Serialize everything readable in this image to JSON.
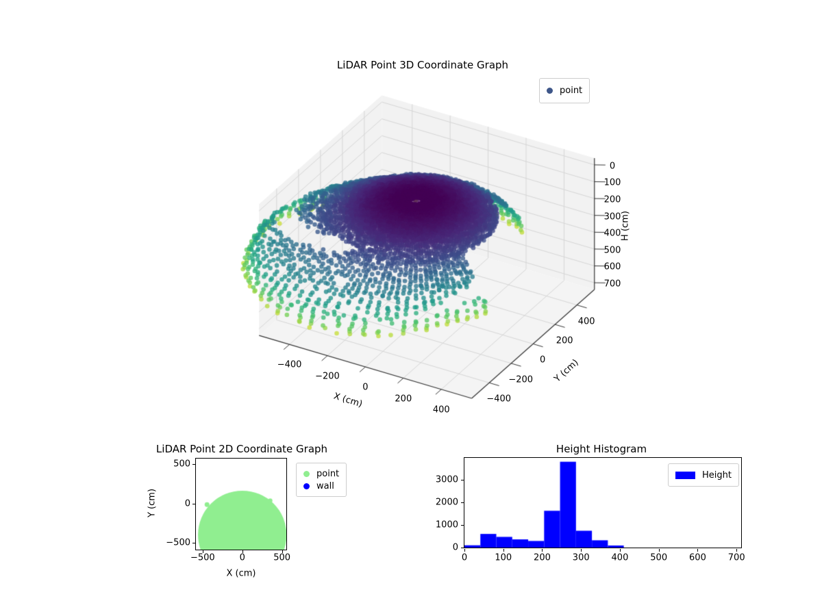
{
  "figure": {
    "bg": "#ffffff"
  },
  "chart_data": [
    {
      "id": "lidar3d",
      "type": "scatter",
      "projection": "3d",
      "title": "LiDAR Point 3D Coordinate Graph",
      "xlabel": "X (cm)",
      "ylabel": "Y (cm)",
      "zlabel": "H (cm)",
      "xlim": [
        -560,
        560
      ],
      "ylim": [
        -560,
        560
      ],
      "hlim": [
        0,
        700
      ],
      "h_axis_inverted": true,
      "xticks": [
        -400,
        -200,
        0,
        200,
        400
      ],
      "yticks": [
        400,
        200,
        0,
        -200,
        -400
      ],
      "zticks": [
        0,
        100,
        200,
        300,
        400,
        500,
        600,
        700
      ],
      "view": {
        "elev": 30,
        "azim": -60
      },
      "grid": true,
      "legend": [
        {
          "label": "point",
          "marker_color": "#3E5689"
        }
      ],
      "colormap": "viridis",
      "colormap_stops": [
        [
          0,
          "#440154"
        ],
        [
          0.125,
          "#482878"
        ],
        [
          0.25,
          "#3e4a89"
        ],
        [
          0.375,
          "#31688e"
        ],
        [
          0.5,
          "#26828e"
        ],
        [
          0.625,
          "#1f9e89"
        ],
        [
          0.75,
          "#35b779"
        ],
        [
          0.875,
          "#6ece58"
        ],
        [
          1,
          "#fde725"
        ]
      ],
      "point_cloud": {
        "summary": "Hemispherical LiDAR dome of ~8000 points colored by height H (viridis, dark apex H~20cm to yellow floor H~410cm), apex above (0,-100), base radius 560cm extended to ~790cm toward -X/-Y, azimuthal gap toward +X below mid-height",
        "center": [
          0,
          -100
        ],
        "base_radius": 560,
        "radius_extension": 230,
        "apex_h": 20,
        "floor_h": 410,
        "theta_bands": [
          [
            4,
            30,
            1.0,
            2
          ],
          [
            30,
            45,
            1.25,
            2
          ],
          [
            45,
            62,
            1.45,
            3
          ],
          [
            62,
            75,
            1.9,
            4
          ],
          [
            75,
            88.5,
            2.3,
            5
          ]
        ],
        "keep_prob": [
          [
            35,
            0.97
          ],
          [
            60,
            0.8
          ],
          [
            75,
            0.72
          ],
          [
            90,
            0.85
          ]
        ],
        "gap_sector": {
          "theta_min": 42,
          "phi_range": [
            -25,
            60
          ]
        },
        "wall_cluster": {
          "center": [
            -18,
            -393,
            85
          ],
          "count": 16,
          "spread": 26
        },
        "stray_points": [
          [
            0,
            -95,
            18
          ],
          [
            10,
            -430,
            130
          ]
        ],
        "marker_px": 3.3,
        "alpha": 0.78
      }
    },
    {
      "id": "lidar2d",
      "type": "scatter",
      "title": "LiDAR Point 2D Coordinate Graph",
      "xlabel": "X (cm)",
      "ylabel": "Y (cm)",
      "xlim": [
        -585,
        555
      ],
      "ylim": [
        -586,
        569
      ],
      "xticks": [
        -500,
        0,
        500
      ],
      "yticks": [
        500,
        0,
        -500
      ],
      "legend": [
        {
          "label": "point",
          "marker_color": "#90EE90"
        },
        {
          "label": "wall",
          "marker_color": "#0000FF"
        }
      ],
      "series": [
        {
          "name": "point",
          "color": "#90EE90",
          "shape": "filled-disk",
          "disk_center": [
            0,
            -400
          ],
          "disk_radius": 560,
          "bumps": [
            [
              -445,
              -15,
              30
            ],
            [
              352,
              35,
              28
            ]
          ],
          "note": "dense green point blob; solid disk clipped by axes box"
        },
        {
          "name": "wall",
          "color": "#0000FF",
          "points": [],
          "note": "wall points not visibly distinct in plot"
        }
      ]
    },
    {
      "id": "hist",
      "type": "histogram",
      "title": "Height Histogram",
      "xlim": [
        0,
        712
      ],
      "ylim": [
        0,
        3950
      ],
      "xticks": [
        0,
        100,
        200,
        300,
        400,
        500,
        600,
        700
      ],
      "yticks": [
        0,
        1000,
        2000,
        3000
      ],
      "legend": [
        {
          "label": "Height",
          "marker_color": "#0000FF"
        }
      ],
      "series": [
        {
          "name": "Height",
          "color": "#0000FF",
          "bin_edges": [
            0,
            41,
            82,
            123,
            164,
            205,
            246,
            287,
            328,
            369,
            410
          ],
          "counts": [
            100,
            600,
            470,
            360,
            290,
            1620,
            3780,
            740,
            320,
            90
          ]
        }
      ]
    }
  ]
}
